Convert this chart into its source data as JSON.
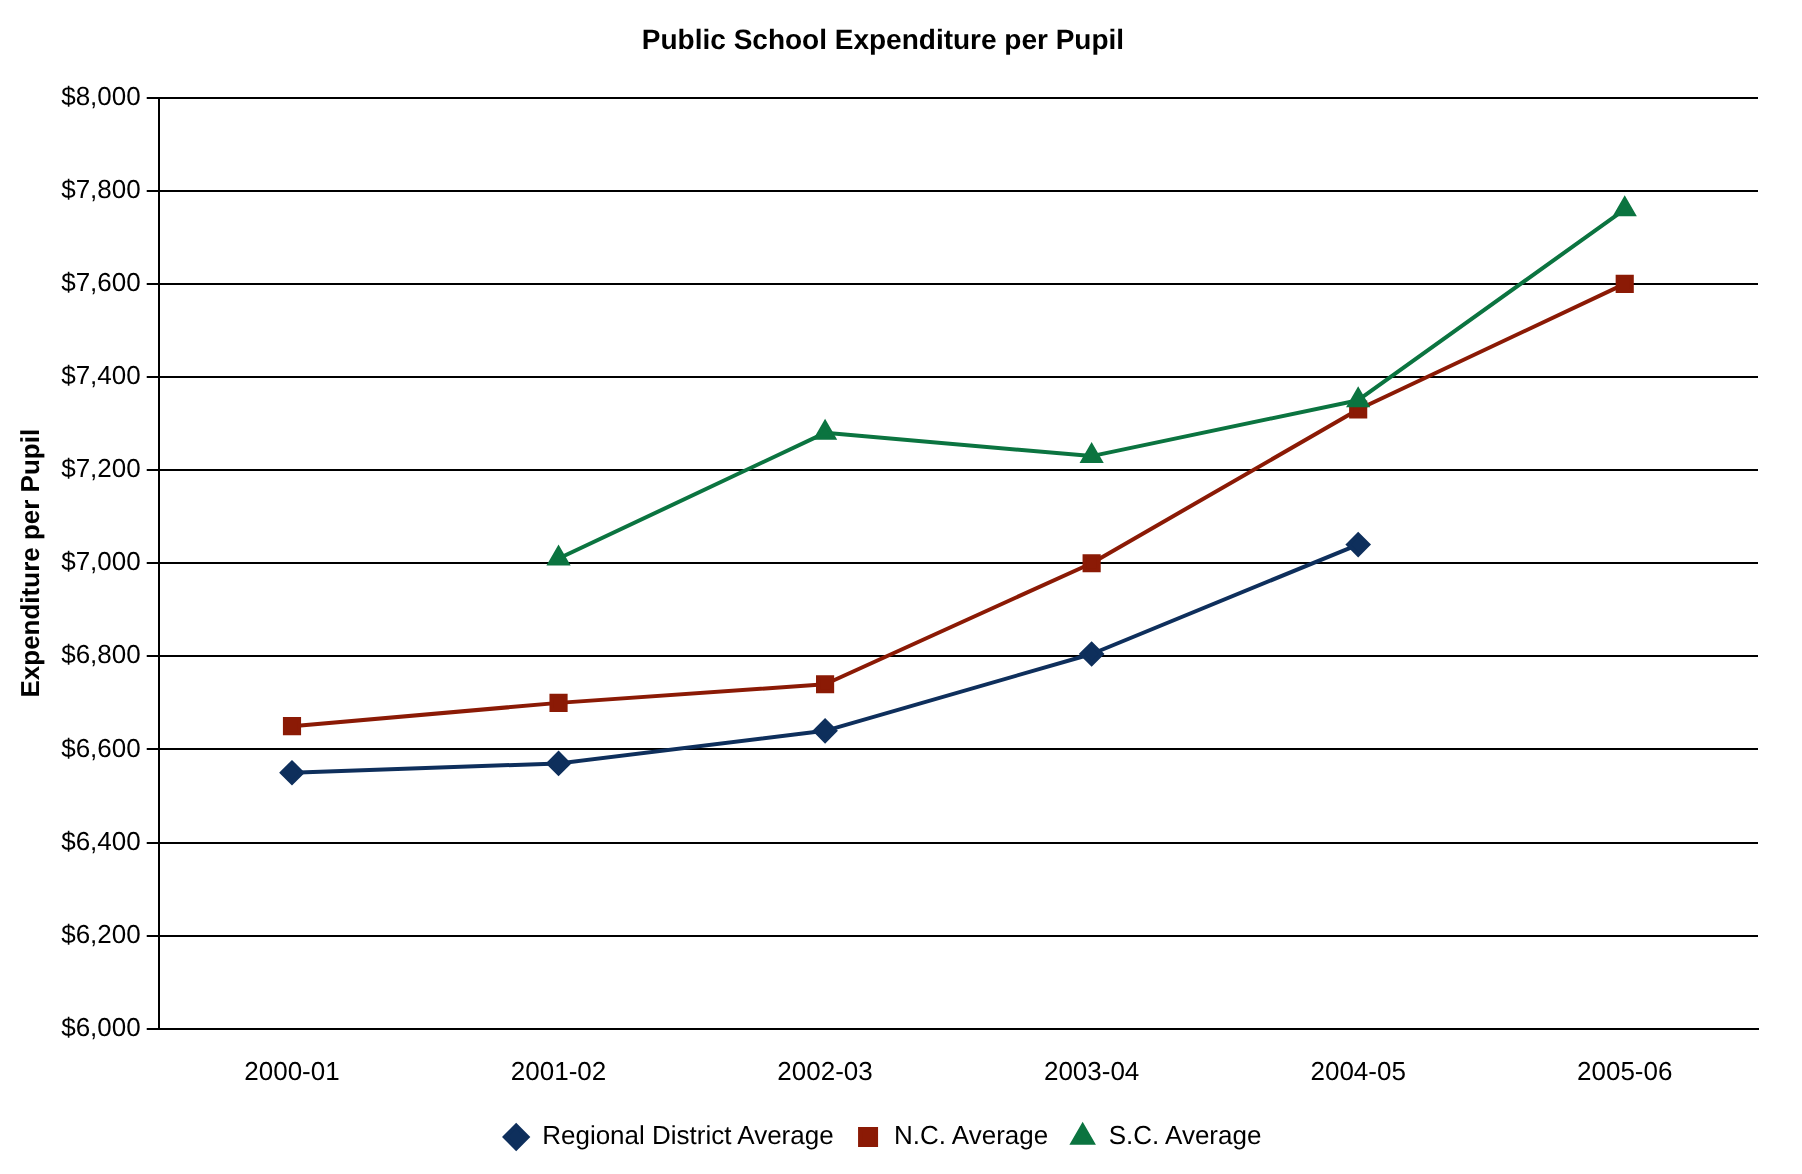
{
  "chart_data": {
    "type": "line",
    "title": "Public School Expenditure per Pupil",
    "ylabel": "Expenditure per Pupil",
    "categories": [
      "2000-01",
      "2001-02",
      "2002-03",
      "2003-04",
      "2004-05",
      "2005-06"
    ],
    "series": [
      {
        "name": "Regional District Average",
        "color": "#0e2f5c",
        "marker": "diamond",
        "values": [
          6550,
          6570,
          6640,
          6805,
          7040,
          null
        ]
      },
      {
        "name": "N.C. Average",
        "color": "#8b1a05",
        "marker": "square",
        "values": [
          6650,
          6700,
          6740,
          7000,
          7330,
          7600
        ]
      },
      {
        "name": "S.C. Average",
        "color": "#0b7440",
        "marker": "triangle",
        "values": [
          null,
          7010,
          7280,
          7230,
          7350,
          7760
        ]
      }
    ],
    "ylim": [
      6000,
      8000
    ],
    "yticks": [
      {
        "value": 6000,
        "label": "$6,000"
      },
      {
        "value": 6200,
        "label": "$6,200"
      },
      {
        "value": 6400,
        "label": "$6,400"
      },
      {
        "value": 6600,
        "label": "$6,600"
      },
      {
        "value": 6800,
        "label": "$6,800"
      },
      {
        "value": 7000,
        "label": "$7,000"
      },
      {
        "value": 7200,
        "label": "$7,200"
      },
      {
        "value": 7400,
        "label": "$7,400"
      },
      {
        "value": 7600,
        "label": "$7,600"
      },
      {
        "value": 7800,
        "label": "$7,800"
      },
      {
        "value": 8000,
        "label": "$8,000"
      }
    ],
    "grid": "y",
    "legend": "bottom",
    "line_style": "solid"
  }
}
